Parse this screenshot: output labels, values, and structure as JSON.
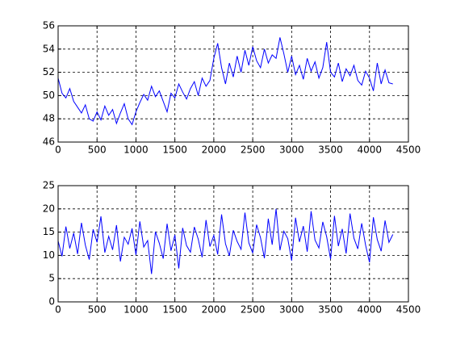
{
  "chart_data": [
    {
      "type": "line",
      "color": "#0000ff",
      "grid": true,
      "xlim": [
        0,
        4500
      ],
      "xticks": [
        0,
        500,
        1000,
        1500,
        2000,
        2500,
        3000,
        3500,
        4000,
        4500
      ],
      "ylim": [
        46,
        56
      ],
      "yticks": [
        46,
        48,
        50,
        52,
        54,
        56
      ],
      "x": [
        0,
        50,
        100,
        150,
        200,
        250,
        300,
        350,
        400,
        450,
        500,
        550,
        600,
        650,
        700,
        750,
        800,
        850,
        900,
        950,
        1000,
        1050,
        1100,
        1150,
        1200,
        1250,
        1300,
        1350,
        1400,
        1450,
        1500,
        1550,
        1600,
        1650,
        1700,
        1750,
        1800,
        1850,
        1900,
        1950,
        2000,
        2050,
        2100,
        2150,
        2200,
        2250,
        2300,
        2350,
        2400,
        2450,
        2500,
        2550,
        2600,
        2650,
        2700,
        2750,
        2800,
        2850,
        2900,
        2950,
        3000,
        3050,
        3100,
        3150,
        3200,
        3250,
        3300,
        3350,
        3400,
        3450,
        3500,
        3550,
        3600,
        3650,
        3700,
        3750,
        3800,
        3850,
        3900,
        3950,
        4000,
        4050,
        4100,
        4150,
        4200,
        4250,
        4300
      ],
      "values": [
        51.5,
        50.2,
        49.8,
        50.6,
        49.5,
        49.0,
        48.5,
        49.2,
        48.0,
        47.8,
        48.6,
        47.9,
        49.1,
        48.3,
        48.8,
        47.6,
        48.5,
        49.3,
        48.0,
        47.5,
        48.6,
        49.4,
        50.1,
        49.6,
        50.8,
        49.9,
        50.4,
        49.5,
        48.6,
        50.2,
        49.8,
        51.0,
        50.3,
        49.7,
        50.6,
        51.2,
        50.0,
        51.5,
        50.8,
        51.3,
        53.2,
        54.5,
        52.4,
        51.0,
        52.8,
        51.6,
        53.4,
        52.0,
        53.9,
        52.6,
        54.2,
        53.0,
        52.4,
        54.0,
        52.8,
        53.5,
        53.2,
        55.0,
        53.6,
        52.0,
        53.4,
        51.8,
        52.6,
        51.4,
        53.2,
        52.1,
        52.9,
        51.5,
        52.4,
        54.6,
        52.0,
        51.6,
        52.8,
        51.2,
        52.3,
        51.7,
        52.6,
        51.3,
        50.9,
        52.1,
        51.5,
        50.4,
        52.8,
        51.0,
        52.2,
        51.1,
        51.0
      ]
    },
    {
      "type": "line",
      "color": "#0000ff",
      "grid": true,
      "xlim": [
        0,
        4500
      ],
      "xticks": [
        0,
        500,
        1000,
        1500,
        2000,
        2500,
        3000,
        3500,
        4000,
        4500
      ],
      "ylim": [
        0,
        25
      ],
      "yticks": [
        0,
        5,
        10,
        15,
        20,
        25
      ],
      "x": [
        0,
        50,
        100,
        150,
        200,
        250,
        300,
        350,
        400,
        450,
        500,
        550,
        600,
        650,
        700,
        750,
        800,
        850,
        900,
        950,
        1000,
        1050,
        1100,
        1150,
        1200,
        1250,
        1300,
        1350,
        1400,
        1450,
        1500,
        1550,
        1600,
        1650,
        1700,
        1750,
        1800,
        1850,
        1900,
        1950,
        2000,
        2050,
        2100,
        2150,
        2200,
        2250,
        2300,
        2350,
        2400,
        2450,
        2500,
        2550,
        2600,
        2650,
        2700,
        2750,
        2800,
        2850,
        2900,
        2950,
        3000,
        3050,
        3100,
        3150,
        3200,
        3250,
        3300,
        3350,
        3400,
        3450,
        3500,
        3550,
        3600,
        3650,
        3700,
        3750,
        3800,
        3850,
        3900,
        3950,
        4000,
        4050,
        4100,
        4150,
        4200,
        4250,
        4300
      ],
      "values": [
        13.1,
        9.8,
        16.2,
        11.5,
        14.8,
        10.3,
        17.0,
        12.2,
        9.1,
        15.6,
        12.8,
        18.4,
        10.6,
        14.1,
        11.2,
        16.5,
        8.7,
        13.9,
        12.4,
        15.8,
        10.1,
        17.3,
        11.8,
        13.2,
        6.0,
        15.1,
        12.6,
        9.3,
        16.8,
        11.0,
        14.4,
        7.2,
        15.9,
        12.1,
        10.7,
        16.1,
        13.5,
        9.6,
        17.6,
        11.9,
        14.3,
        10.2,
        18.8,
        12.5,
        9.9,
        15.4,
        13.0,
        11.3,
        19.2,
        12.7,
        10.5,
        16.6,
        13.8,
        9.4,
        17.9,
        12.3,
        20.0,
        11.1,
        15.2,
        13.6,
        8.9,
        18.1,
        12.9,
        16.3,
        10.8,
        19.5,
        13.3,
        11.6,
        17.2,
        14.0,
        9.2,
        18.5,
        12.0,
        15.7,
        10.4,
        19.0,
        13.7,
        11.4,
        16.9,
        12.2,
        8.5,
        18.2,
        13.4,
        10.9,
        17.5,
        12.8,
        14.5
      ]
    }
  ]
}
